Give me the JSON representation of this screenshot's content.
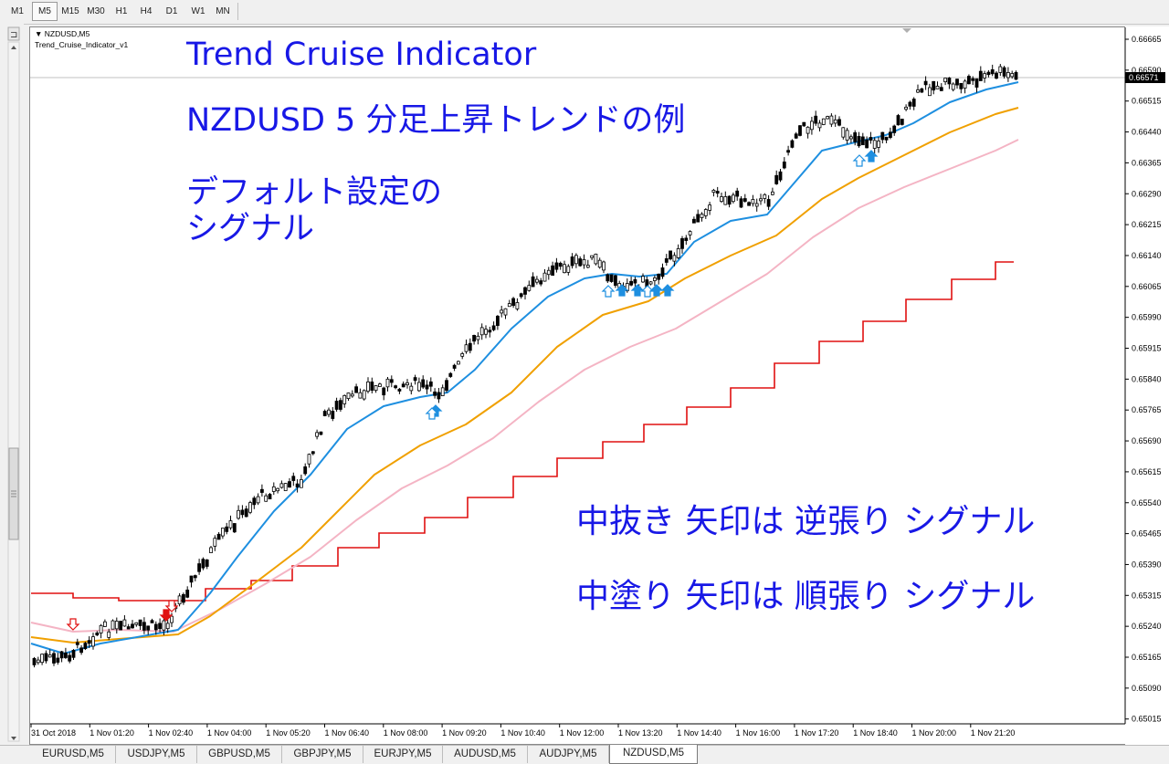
{
  "timeframes": [
    "M1",
    "M5",
    "M15",
    "M30",
    "H1",
    "H4",
    "D1",
    "W1",
    "MN"
  ],
  "active_timeframe": "M5",
  "chart": {
    "symbol_label": "NZDUSD,M5",
    "indicator_label": "Trend_Cruise_Indicator_v1",
    "current_price": "0.66571"
  },
  "annotations": {
    "title": "Trend Cruise Indicator",
    "subtitle": "NZDUSD 5 分足上昇トレンドの例",
    "default_line1": "デフォルト設定の",
    "default_line2": "シグナル",
    "note_hollow": "中抜き 矢印は 逆張り シグナル",
    "note_filled": "中塗り 矢印は 順張り シグナル"
  },
  "price_axis": [
    "0.66665",
    "0.66590",
    "0.66515",
    "0.66440",
    "0.66365",
    "0.66290",
    "0.66215",
    "0.66140",
    "0.66065",
    "0.65990",
    "0.65915",
    "0.65840",
    "0.65765",
    "0.65690",
    "0.65615",
    "0.65540",
    "0.65465",
    "0.65390",
    "0.65315",
    "0.65240",
    "0.65165",
    "0.65090",
    "0.65015"
  ],
  "time_axis": [
    "31 Oct 2018",
    "1 Nov 01:20",
    "1 Nov 02:40",
    "1 Nov 04:00",
    "1 Nov 05:20",
    "1 Nov 06:40",
    "1 Nov 08:00",
    "1 Nov 09:20",
    "1 Nov 10:40",
    "1 Nov 12:00",
    "1 Nov 13:20",
    "1 Nov 14:40",
    "1 Nov 16:00",
    "1 Nov 17:20",
    "1 Nov 18:40",
    "1 Nov 20:00",
    "1 Nov 21:20"
  ],
  "tabs": [
    "EURUSD,M5",
    "USDJPY,M5",
    "GBPUSD,M5",
    "GBPJPY,M5",
    "EURJPY,M5",
    "AUDUSD,M5",
    "AUDJPY,M5",
    "NZDUSD,M5"
  ],
  "active_tab": "NZDUSD,M5",
  "colors": {
    "fast_line": "#1e8fe0",
    "mid_line": "#f0a000",
    "slow_line": "#f4b4c4",
    "stop_line": "#e01010",
    "text_blue": "#1818e6",
    "buy_arrow": "#1e8fe0",
    "sell_arrow": "#e01010"
  }
}
